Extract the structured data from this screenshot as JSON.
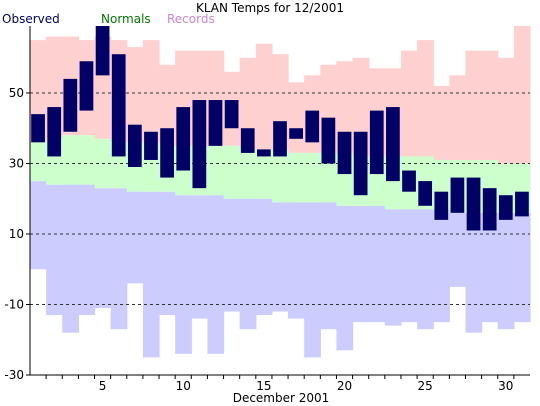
{
  "chart_data": {
    "type": "bar",
    "title": "KLAN Temps for 12/2001",
    "xlabel": "December 2001",
    "ylabel": "",
    "ylim": [
      -30,
      69
    ],
    "xlim": [
      0,
      31
    ],
    "grid": {
      "y_dashed_at": [
        50,
        30,
        10,
        -10
      ]
    },
    "yticks": [
      50,
      30,
      10,
      -10,
      -30
    ],
    "xticks": [
      5,
      10,
      15,
      20,
      25,
      30
    ],
    "days": [
      1,
      2,
      3,
      4,
      5,
      6,
      7,
      8,
      9,
      10,
      11,
      12,
      13,
      14,
      15,
      16,
      17,
      18,
      19,
      20,
      21,
      22,
      23,
      24,
      25,
      26,
      27,
      28,
      29,
      30,
      31
    ],
    "legend": [
      {
        "label": "Observed",
        "color": "#000066"
      },
      {
        "label": "Normals",
        "color": "#007700"
      },
      {
        "label": "Records",
        "color": "#cc88cc"
      }
    ],
    "colors": {
      "records_band": "#ffd0d0",
      "normals_band": "#ccffcc",
      "low_band": "#ccccff",
      "observed_bar": "#000066",
      "grid_line": "#333333",
      "axis": "#000000"
    },
    "series": [
      {
        "name": "Records",
        "record_high": [
          65,
          66,
          66,
          65,
          66,
          65,
          63,
          65,
          58,
          62,
          62,
          62,
          56,
          60,
          64,
          61,
          53,
          55,
          58,
          59,
          60,
          57,
          57,
          62,
          65,
          52,
          55,
          62,
          62,
          60,
          69
        ],
        "record_low": [
          0,
          -13,
          -18,
          -13,
          -11,
          -17,
          -4,
          -25,
          -13,
          -24,
          -14,
          -24,
          -12,
          -17,
          -13,
          -12,
          -14,
          -25,
          -17,
          -23,
          -15,
          -15,
          -16,
          -15,
          -17,
          -15,
          -5,
          -18,
          -15,
          -17,
          -15
        ]
      },
      {
        "name": "Normals",
        "normal_high": [
          36,
          37,
          38,
          38,
          37,
          36,
          36,
          36,
          35,
          35,
          35,
          35,
          35,
          34,
          34,
          34,
          33,
          33,
          33,
          33,
          32,
          32,
          32,
          32,
          32,
          31,
          31,
          31,
          31,
          30,
          30
        ],
        "normal_low": [
          25,
          24,
          24,
          24,
          23,
          23,
          22,
          22,
          22,
          21,
          21,
          21,
          20,
          20,
          20,
          19,
          19,
          19,
          19,
          18,
          18,
          18,
          17,
          17,
          17,
          17,
          16,
          16,
          16,
          16,
          16
        ]
      },
      {
        "name": "Observed",
        "high": [
          44,
          46,
          54,
          59,
          69,
          61,
          41,
          39,
          40,
          46,
          48,
          48,
          48,
          40,
          34,
          42,
          40,
          45,
          43,
          39,
          39,
          45,
          46,
          28,
          25,
          22,
          26,
          26,
          23,
          21,
          22
        ],
        "low": [
          36,
          32,
          39,
          45,
          55,
          32,
          29,
          31,
          26,
          28,
          23,
          35,
          40,
          33,
          32,
          32,
          37,
          36,
          30,
          27,
          21,
          27,
          25,
          22,
          18,
          14,
          16,
          11,
          11,
          14,
          15
        ]
      }
    ]
  }
}
